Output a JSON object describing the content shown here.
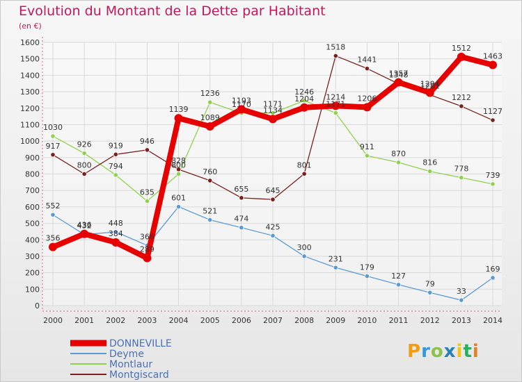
{
  "header": {
    "title": "Evolution du Montant de la Dette par Habitant",
    "unit": "(en €)"
  },
  "logo": {
    "letters": [
      {
        "char": "P",
        "color": "#f39c12"
      },
      {
        "char": "r",
        "color": "#3498db"
      },
      {
        "char": "o",
        "color": "#8bc34a"
      },
      {
        "char": "x",
        "color": "#2980b9"
      },
      {
        "char": "i",
        "color": "#f1c40f"
      },
      {
        "char": "t",
        "color": "#27ae60"
      },
      {
        "char": "i",
        "color": "#e67e22"
      }
    ]
  },
  "chart_data": {
    "type": "line",
    "title": "Evolution du Montant de la Dette par Habitant",
    "ylabel": "(en €)",
    "xlabel": "",
    "ylim": [
      0,
      1600
    ],
    "grid": true,
    "legend_position": "bottom-left",
    "x": [
      "2000",
      "2001",
      "2002",
      "2003",
      "2004",
      "2005",
      "2006",
      "2007",
      "2008",
      "2009",
      "2010",
      "2011",
      "2012",
      "2013",
      "2014"
    ],
    "yticks": [
      0,
      100,
      200,
      300,
      400,
      500,
      600,
      700,
      800,
      900,
      1000,
      1100,
      1200,
      1300,
      1400,
      1500,
      1600
    ],
    "series": [
      {
        "name": "DONNEVILLE",
        "color": "#e60000",
        "values": [
          356,
          436,
          384,
          289,
          1139,
          1089,
          1193,
          1134,
          1204,
          1214,
          1206,
          1357,
          1294,
          1512,
          1463
        ]
      },
      {
        "name": "Deyme",
        "color": "#5b9bd5",
        "values": [
          552,
          432,
          448,
          366,
          601,
          521,
          474,
          425,
          300,
          231,
          179,
          127,
          79,
          33,
          169
        ]
      },
      {
        "name": "Montlaur",
        "color": "#8fd14f",
        "values": [
          1030,
          926,
          794,
          635,
          800,
          1236,
          1170,
          1171,
          1246,
          1171,
          911,
          870,
          816,
          778,
          739
        ]
      },
      {
        "name": "Montgiscard",
        "color": "#7a1e1e",
        "values": [
          917,
          800,
          919,
          946,
          828,
          760,
          655,
          645,
          801,
          1518,
          1441,
          1348,
          1281,
          1212,
          1127
        ]
      }
    ]
  }
}
